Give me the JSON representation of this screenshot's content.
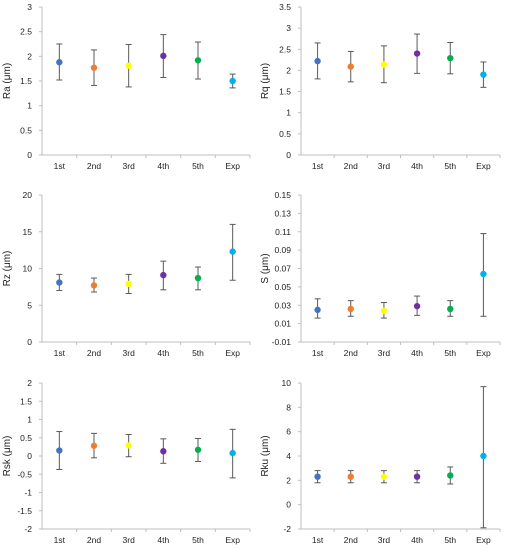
{
  "chart_data": [
    {
      "type": "scatter",
      "ylabel": "Ra (μm)",
      "categories": [
        "1st",
        "2nd",
        "3rd",
        "4th",
        "5th",
        "Exp"
      ],
      "values": [
        1.88,
        1.77,
        1.81,
        2.01,
        1.92,
        1.5
      ],
      "err_low": [
        1.52,
        1.41,
        1.38,
        1.57,
        1.54,
        1.36
      ],
      "err_high": [
        2.25,
        2.13,
        2.24,
        2.44,
        2.29,
        1.64
      ],
      "ylim": [
        0,
        3
      ],
      "yticks": [
        "0",
        "0.5",
        "1",
        "1.5",
        "2",
        "2.5",
        "3"
      ]
    },
    {
      "type": "scatter",
      "ylabel": "Rq (μm)",
      "categories": [
        "1st",
        "2nd",
        "3rd",
        "4th",
        "5th",
        "Exp"
      ],
      "values": [
        2.22,
        2.09,
        2.14,
        2.4,
        2.29,
        1.9
      ],
      "err_low": [
        1.8,
        1.73,
        1.71,
        1.93,
        1.92,
        1.6
      ],
      "err_high": [
        2.65,
        2.45,
        2.58,
        2.86,
        2.66,
        2.2
      ],
      "ylim": [
        0,
        3.5
      ],
      "yticks": [
        "0",
        "0.5",
        "1",
        "1.5",
        "2",
        "2.5",
        "3",
        "3.5"
      ]
    },
    {
      "type": "scatter",
      "ylabel": "Rz (μm)",
      "categories": [
        "1st",
        "2nd",
        "3rd",
        "4th",
        "5th",
        "Exp"
      ],
      "values": [
        8.1,
        7.7,
        7.9,
        9.1,
        8.7,
        12.3
      ],
      "err_low": [
        7.0,
        6.8,
        6.6,
        7.1,
        7.1,
        8.4
      ],
      "err_high": [
        9.2,
        8.7,
        9.2,
        11.0,
        10.2,
        16.0
      ],
      "ylim": [
        0,
        20
      ],
      "yticks": [
        "0",
        "5",
        "10",
        "15",
        "20"
      ]
    },
    {
      "type": "scatter",
      "ylabel": "S (μm)",
      "categories": [
        "1st",
        "2nd",
        "3rd",
        "4th",
        "5th",
        "Exp"
      ],
      "values": [
        0.025,
        0.026,
        0.024,
        0.029,
        0.026,
        0.064
      ],
      "err_low": [
        0.016,
        0.018,
        0.016,
        0.019,
        0.018,
        0.018
      ],
      "err_high": [
        0.037,
        0.035,
        0.033,
        0.04,
        0.035,
        0.108
      ],
      "ylim": [
        -0.01,
        0.15
      ],
      "yticks": [
        "-0.01",
        "0.01",
        "0.03",
        "0.05",
        "0.07",
        "0.09",
        "0.11",
        "0.13",
        "0.15"
      ]
    },
    {
      "type": "scatter",
      "ylabel": "Rsk (μm)",
      "categories": [
        "1st",
        "2nd",
        "3rd",
        "4th",
        "5th",
        "Exp"
      ],
      "values": [
        0.15,
        0.28,
        0.29,
        0.13,
        0.17,
        0.08
      ],
      "err_low": [
        -0.37,
        -0.05,
        -0.02,
        -0.2,
        -0.15,
        -0.6
      ],
      "err_high": [
        0.67,
        0.62,
        0.59,
        0.47,
        0.48,
        0.73
      ],
      "ylim": [
        -2,
        2
      ],
      "yticks": [
        "-2",
        "-1.5",
        "-1",
        "-0.5",
        "0",
        "0.5",
        "1",
        "1.5",
        "2"
      ]
    },
    {
      "type": "scatter",
      "ylabel": "Rku (μm)",
      "categories": [
        "1st",
        "2nd",
        "3rd",
        "4th",
        "5th",
        "Exp"
      ],
      "values": [
        2.3,
        2.3,
        2.3,
        2.3,
        2.4,
        4.0
      ],
      "err_low": [
        1.8,
        1.8,
        1.8,
        1.8,
        1.7,
        -1.9
      ],
      "err_high": [
        2.8,
        2.8,
        2.8,
        2.8,
        3.1,
        9.7
      ],
      "ylim": [
        -2,
        10
      ],
      "yticks": [
        "-2",
        "0",
        "2",
        "4",
        "6",
        "8",
        "10"
      ]
    }
  ],
  "series_colors": [
    "#4472c4",
    "#ed7d31",
    "#ffff00",
    "#7030a0",
    "#00b050",
    "#00b0f0"
  ],
  "error_bar_color": "#595959",
  "axis_color": "#bfbfbf"
}
